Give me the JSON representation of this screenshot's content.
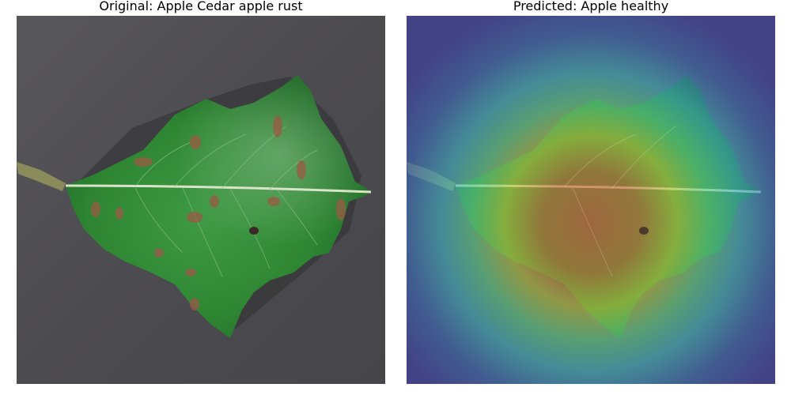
{
  "panels": [
    {
      "title": "Original: Apple Cedar apple rust",
      "image": "leaf-photo"
    },
    {
      "title": "Predicted: Apple healthy",
      "image": "gradcam-heatmap-overlay"
    }
  ],
  "colors": {
    "background_surface": "#4d4c4f",
    "leaf_green": "#2f8a32",
    "rust_spot": "#9a5a45",
    "heatmap_outer": "#3b3da8",
    "heatmap_mid": "#3fb0c4",
    "heatmap_core": "#c84a3a"
  }
}
